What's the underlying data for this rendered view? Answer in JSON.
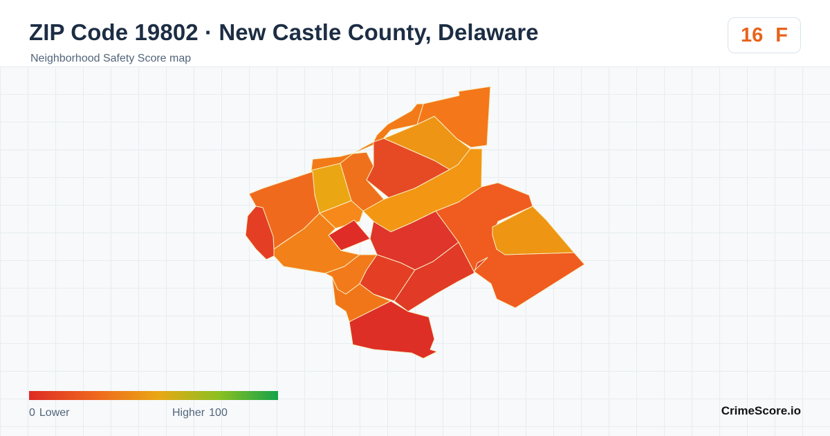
{
  "header": {
    "title": "ZIP Code 19802 · New Castle County, Delaware",
    "subtitle": "Neighborhood Safety Score map"
  },
  "score": {
    "value": "16",
    "grade": "F",
    "color": "#e8621a"
  },
  "legend": {
    "low_value": "0",
    "low_label": "Lower",
    "high_label": "Higher",
    "high_value": "100",
    "colors": [
      "#de2b25",
      "#ef6a1d",
      "#e9a714",
      "#8cc021",
      "#15a34a"
    ]
  },
  "brand": "CrimeScore.io",
  "map": {
    "regions": [
      {
        "name": "region-north-tip",
        "color": "#f47719"
      },
      {
        "name": "region-northwest-edge",
        "color": "#f27a18"
      },
      {
        "name": "region-north-center",
        "color": "#ee9516"
      },
      {
        "name": "region-yellow-west",
        "color": "#eba614"
      },
      {
        "name": "region-upper-middle",
        "color": "#f0711c"
      },
      {
        "name": "region-red-north",
        "color": "#e64a25"
      },
      {
        "name": "region-mid-west",
        "color": "#f7891a"
      },
      {
        "name": "region-mid-east",
        "color": "#f29614"
      },
      {
        "name": "region-west-orange",
        "color": "#f06a1e"
      },
      {
        "name": "region-west-red",
        "color": "#e43e24"
      },
      {
        "name": "region-bright-red",
        "color": "#e02c26"
      },
      {
        "name": "region-center-orange",
        "color": "#f2811a"
      },
      {
        "name": "region-center-red",
        "color": "#e0352a"
      },
      {
        "name": "region-sw-orange",
        "color": "#f27a1b"
      },
      {
        "name": "region-south-mid",
        "color": "#e43f24"
      },
      {
        "name": "region-south-orange",
        "color": "#f17619"
      },
      {
        "name": "region-east-large",
        "color": "#f05c1f"
      },
      {
        "name": "region-east-yellow",
        "color": "#ee9514"
      },
      {
        "name": "region-se-red",
        "color": "#e13a27"
      },
      {
        "name": "region-bottom",
        "color": "#de2f26"
      }
    ]
  }
}
